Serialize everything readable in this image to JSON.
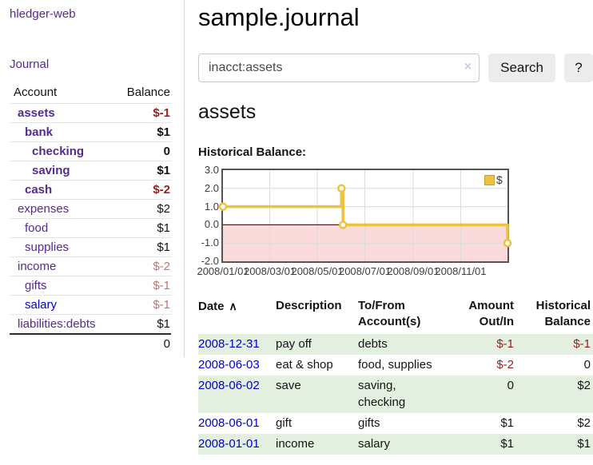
{
  "app": {
    "title": "hledger-web"
  },
  "colors": {
    "accent_purple": "#552a91",
    "link_blue": "#0000cc",
    "negative_red": "#9d1d1d",
    "negative_dim_red": "#c07470",
    "row_green": "#e3efdf",
    "button_bg": "#ececec"
  },
  "sidebar": {
    "journal_link": "Journal",
    "table": {
      "headers": [
        "Account",
        "Balance"
      ],
      "rows": [
        {
          "name": "assets",
          "indent": 1,
          "bold": true,
          "balance": "$-1",
          "balance_class": "neg"
        },
        {
          "name": "bank",
          "indent": 2,
          "bold": true,
          "balance": "$1",
          "balance_class": ""
        },
        {
          "name": "checking",
          "indent": 3,
          "bold": true,
          "balance": "0",
          "balance_class": ""
        },
        {
          "name": "saving",
          "indent": 3,
          "bold": true,
          "balance": "$1",
          "balance_class": ""
        },
        {
          "name": "cash",
          "indent": 2,
          "bold": true,
          "balance": "$-2",
          "balance_class": "neg"
        },
        {
          "name": "expenses",
          "indent": 1,
          "bold": false,
          "balance": "$2",
          "balance_class": ""
        },
        {
          "name": "food",
          "indent": 2,
          "bold": false,
          "balance": "$1",
          "balance_class": ""
        },
        {
          "name": "supplies",
          "indent": 2,
          "bold": false,
          "balance": "$1",
          "balance_class": ""
        },
        {
          "name": "income",
          "indent": 1,
          "bold": false,
          "balance": "$-2",
          "balance_class": "negdim"
        },
        {
          "name": "gifts",
          "indent": 2,
          "bold": false,
          "balance": "$-1",
          "balance_class": "negdim"
        },
        {
          "name": "salary",
          "indent": 2,
          "bold": false,
          "blue": true,
          "balance": "$-1",
          "balance_class": "negdim"
        },
        {
          "name": "liabilities:debts",
          "indent": 1,
          "bold": false,
          "balance": "$1",
          "balance_class": ""
        }
      ],
      "total": "0"
    }
  },
  "main": {
    "title": "sample.journal",
    "search": {
      "value": "inacct:assets",
      "clear_icon": "×",
      "button": "Search",
      "help_button": "?"
    },
    "account_heading": "assets",
    "chart_heading": "Historical Balance:",
    "register": {
      "sort_icon": "∧",
      "columns": [
        {
          "key": "date",
          "l1": "Date",
          "l2": "",
          "align": "left",
          "sortable": true
        },
        {
          "key": "description",
          "l1": "Description",
          "l2": "",
          "align": "left",
          "sortable": false
        },
        {
          "key": "accounts",
          "l1": "To/From",
          "l2": "Account(s)",
          "align": "left",
          "sortable": false
        },
        {
          "key": "amount",
          "l1": "Amount",
          "l2": "Out/In",
          "align": "right",
          "sortable": false
        },
        {
          "key": "balance",
          "l1": "Historical",
          "l2": "Balance",
          "align": "right",
          "sortable": false
        }
      ],
      "rows": [
        {
          "date": "2008-12-31",
          "description": "pay off",
          "accounts": "debts",
          "amount": "$-1",
          "amount_negative": true,
          "balance": "$-1",
          "balance_negative": true
        },
        {
          "date": "2008-06-03",
          "description": "eat & shop",
          "accounts": "food, supplies",
          "amount": "$-2",
          "amount_negative": true,
          "balance": "0",
          "balance_negative": false
        },
        {
          "date": "2008-06-02",
          "description": "save",
          "accounts": "saving,\nchecking",
          "amount": "0",
          "amount_negative": false,
          "balance": "$2",
          "balance_negative": false
        },
        {
          "date": "2008-06-01",
          "description": "gift",
          "accounts": "gifts",
          "amount": "$1",
          "amount_negative": false,
          "balance": "$2",
          "balance_negative": false
        },
        {
          "date": "2008-01-01",
          "description": "income",
          "accounts": "salary",
          "amount": "$1",
          "amount_negative": false,
          "balance": "$1",
          "balance_negative": false
        }
      ]
    }
  },
  "chart_data": {
    "type": "line",
    "step": true,
    "title": "Historical Balance:",
    "series": [
      {
        "name": "$",
        "color": "#edc240",
        "points": [
          [
            "2008-01-01",
            1
          ],
          [
            "2008-06-01",
            2
          ],
          [
            "2008-06-03",
            0
          ],
          [
            "2008-12-31",
            -1
          ]
        ]
      }
    ],
    "xlim": [
      "2008-01-01",
      "2008-12-31"
    ],
    "ylim": [
      -2,
      3
    ],
    "x_ticks": [
      "2008/01/01",
      "2008/03/01",
      "2008/05/01",
      "2008/07/01",
      "2008/09/01",
      "2008/11/01"
    ],
    "y_ticks": [
      3.0,
      2.0,
      1.0,
      0.0,
      -1.0,
      -2.0
    ],
    "grid": true,
    "grid_color": "#dcdcdc",
    "negative_region_color": "#fadada",
    "zero_line_color": "#990000",
    "legend_position": "top-right"
  }
}
